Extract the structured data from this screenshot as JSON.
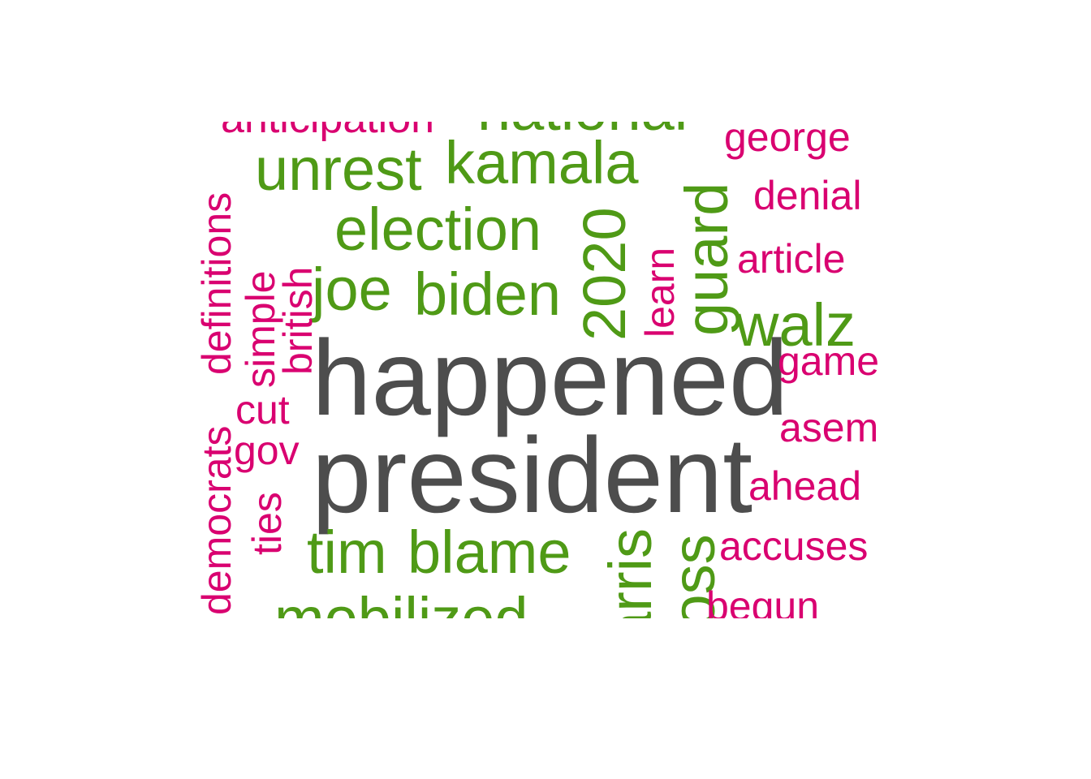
{
  "colors": {
    "primary": "#4d4d4d",
    "secondary": "#4f9a16",
    "tertiary": "#d90070"
  },
  "words": {
    "happened": "happened",
    "president": "president",
    "unrest": "unrest",
    "kamala": "kamala",
    "national": "national",
    "election": "election",
    "joe": "joe",
    "biden": "biden",
    "y2020": "2020",
    "learn": "learn",
    "guard": "guard",
    "walz": "walz",
    "tim": "tim",
    "blame": "blame",
    "harris": "harris",
    "loss": "loss",
    "mobilized": "mobilized",
    "anticipation": "anticipation",
    "george": "george",
    "denial": "denial",
    "article": "article",
    "game": "game",
    "asem": "asem",
    "ahead": "ahead",
    "accuses": "accuses",
    "begun": "begun",
    "democrats": "democrats",
    "definitions": "definitions",
    "simple": "simple",
    "british": "british",
    "cut": "cut",
    "gov": "gov",
    "ties": "ties"
  }
}
